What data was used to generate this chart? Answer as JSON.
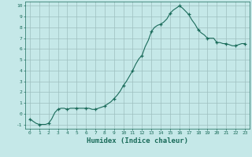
{
  "title": "",
  "xlabel": "Humidex (Indice chaleur)",
  "ylabel": "",
  "background_color": "#c5e8e8",
  "plot_bg_color": "#c5e8e8",
  "line_color": "#1a6b5a",
  "marker_color": "#1a6b5a",
  "grid_color": "#9dbfbf",
  "text_color": "#1a6b5a",
  "xlim": [
    -0.5,
    23.5
  ],
  "ylim": [
    -1.4,
    10.4
  ],
  "yticks": [
    -1,
    0,
    1,
    2,
    3,
    4,
    5,
    6,
    7,
    8,
    9,
    10
  ],
  "xticks": [
    0,
    1,
    2,
    3,
    4,
    5,
    6,
    7,
    8,
    9,
    10,
    11,
    12,
    13,
    14,
    15,
    16,
    17,
    18,
    19,
    20,
    21,
    22,
    23
  ],
  "x": [
    0,
    0.33,
    0.67,
    1,
    1.33,
    1.67,
    2,
    2.33,
    2.67,
    3,
    3.33,
    3.67,
    4,
    4.33,
    4.67,
    5,
    5.33,
    5.67,
    6,
    6.33,
    6.67,
    7,
    7.33,
    7.67,
    8,
    8.33,
    8.67,
    9,
    9.33,
    9.67,
    10,
    10.33,
    10.67,
    11,
    11.33,
    11.67,
    12,
    12.33,
    12.67,
    13,
    13.33,
    13.67,
    14,
    14.33,
    14.67,
    15,
    15.33,
    15.67,
    16,
    16.33,
    16.67,
    17,
    17.33,
    17.67,
    18,
    18.33,
    18.67,
    19,
    19.33,
    19.67,
    20,
    20.33,
    20.67,
    21,
    21.33,
    21.67,
    22,
    22.33,
    22.67,
    23
  ],
  "y": [
    -0.5,
    -0.7,
    -0.9,
    -1.0,
    -1.0,
    -1.0,
    -0.9,
    -0.5,
    0.1,
    0.4,
    0.5,
    0.5,
    0.4,
    0.5,
    0.5,
    0.5,
    0.5,
    0.5,
    0.5,
    0.5,
    0.4,
    0.4,
    0.5,
    0.6,
    0.7,
    0.9,
    1.1,
    1.4,
    1.7,
    2.1,
    2.6,
    3.0,
    3.5,
    4.0,
    4.6,
    5.1,
    5.4,
    6.2,
    6.8,
    7.6,
    8.0,
    8.2,
    8.3,
    8.5,
    8.8,
    9.3,
    9.6,
    9.8,
    10.0,
    9.8,
    9.5,
    9.2,
    8.7,
    8.3,
    7.8,
    7.5,
    7.3,
    7.0,
    7.0,
    7.0,
    6.6,
    6.6,
    6.5,
    6.5,
    6.4,
    6.3,
    6.3,
    6.4,
    6.5,
    6.5
  ],
  "marker_x": [
    0,
    1,
    2,
    3,
    4,
    5,
    6,
    7,
    8,
    9,
    10,
    11,
    12,
    13,
    14,
    15,
    16,
    17,
    18,
    19,
    20,
    21,
    22,
    23
  ],
  "marker_y": [
    -0.5,
    -1.0,
    -0.9,
    0.4,
    0.4,
    0.5,
    0.5,
    0.4,
    0.7,
    1.4,
    2.6,
    4.0,
    5.4,
    7.6,
    8.3,
    9.3,
    10.0,
    9.2,
    7.8,
    7.0,
    6.6,
    6.5,
    6.3,
    6.5
  ]
}
